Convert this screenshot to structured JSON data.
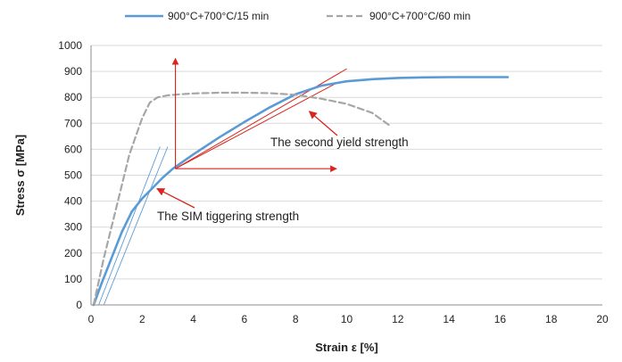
{
  "chart_data": {
    "type": "line",
    "xlabel": "Strain ε [%]",
    "ylabel": "Stress σ [MPa]",
    "xlim": [
      0,
      20
    ],
    "ylim": [
      0,
      1000
    ],
    "xticks": [
      0,
      2,
      4,
      6,
      8,
      10,
      12,
      14,
      16,
      18,
      20
    ],
    "yticks": [
      0,
      100,
      200,
      300,
      400,
      500,
      600,
      700,
      800,
      900,
      1000
    ],
    "grid": "horizontal",
    "legend_position": "top",
    "series": [
      {
        "name": "900°C+700°C/15 min",
        "color": "#5b9bd5",
        "style": "solid",
        "x": [
          0.1,
          0.4,
          0.8,
          1.2,
          1.6,
          2.0,
          2.4,
          2.8,
          3.2,
          4.0,
          5.0,
          6.0,
          7.0,
          8.0,
          9.0,
          10.0,
          11.0,
          12.0,
          13.0,
          14.0,
          15.0,
          16.3
        ],
        "y": [
          0,
          80,
          180,
          280,
          360,
          410,
          450,
          490,
          525,
          580,
          645,
          705,
          762,
          812,
          845,
          862,
          870,
          875,
          877,
          878,
          878,
          878
        ]
      },
      {
        "name": "900°C+700°C/60 min",
        "color": "#a6a6a6",
        "style": "dashed",
        "x": [
          0.1,
          0.5,
          1.0,
          1.5,
          2.0,
          2.3,
          2.6,
          3.0,
          3.5,
          4.0,
          5.0,
          6.0,
          7.0,
          8.0,
          9.0,
          10.0,
          11.0,
          11.7
        ],
        "y": [
          0,
          180,
          380,
          580,
          720,
          780,
          800,
          808,
          812,
          815,
          818,
          818,
          816,
          810,
          795,
          775,
          740,
          690
        ]
      }
    ],
    "annotations": [
      {
        "text": "The second yield strength",
        "point": [
          8.5,
          760
        ]
      },
      {
        "text": "The SIM tiggering strength",
        "point": [
          2.3,
          455
        ]
      }
    ],
    "tangent_lines": [
      {
        "from": [
          0.3,
          0
        ],
        "to": [
          2.7,
          610
        ]
      },
      {
        "from": [
          0.5,
          0
        ],
        "to": [
          3.0,
          610
        ]
      },
      {
        "from": [
          3.3,
          525
        ],
        "to": [
          10.0,
          910
        ]
      },
      {
        "from": [
          3.3,
          525
        ],
        "to": [
          9.6,
          855
        ]
      }
    ],
    "arrows": [
      {
        "from": [
          3.3,
          525
        ],
        "to": [
          3.3,
          950
        ]
      },
      {
        "from": [
          3.3,
          525
        ],
        "to": [
          9.6,
          525
        ]
      }
    ]
  }
}
